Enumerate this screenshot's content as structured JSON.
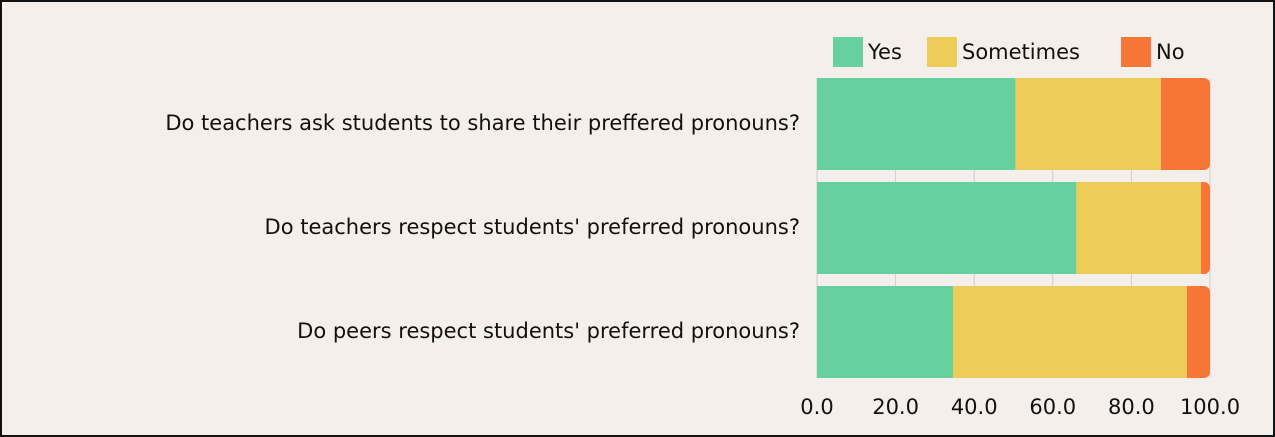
{
  "chart_data": {
    "type": "stacked-barh",
    "categories": [
      "Do teachers ask students to share their preffered pronouns?",
      "Do teachers respect students' preferred pronouns?",
      "Do peers respect students' preferred pronouns?"
    ],
    "series": [
      {
        "name": "Yes",
        "color": "#66d19e",
        "values": [
          50.5,
          66,
          34.6
        ]
      },
      {
        "name": "Sometimes",
        "color": "#edcc58",
        "values": [
          37,
          31.7,
          59.5
        ]
      },
      {
        "name": "No",
        "color": "#f77636",
        "values": [
          12.5,
          2.3,
          5.9
        ]
      }
    ],
    "xlim": [
      0,
      100
    ],
    "xticks": [
      {
        "value": 0,
        "label": "0.0"
      },
      {
        "value": 20,
        "label": "20.0"
      },
      {
        "value": 40,
        "label": "40.0"
      },
      {
        "value": 60,
        "label": "60.0"
      },
      {
        "value": 80,
        "label": "80.0"
      },
      {
        "value": 100,
        "label": "100.0"
      }
    ],
    "grid": true,
    "legend": "top-right"
  }
}
